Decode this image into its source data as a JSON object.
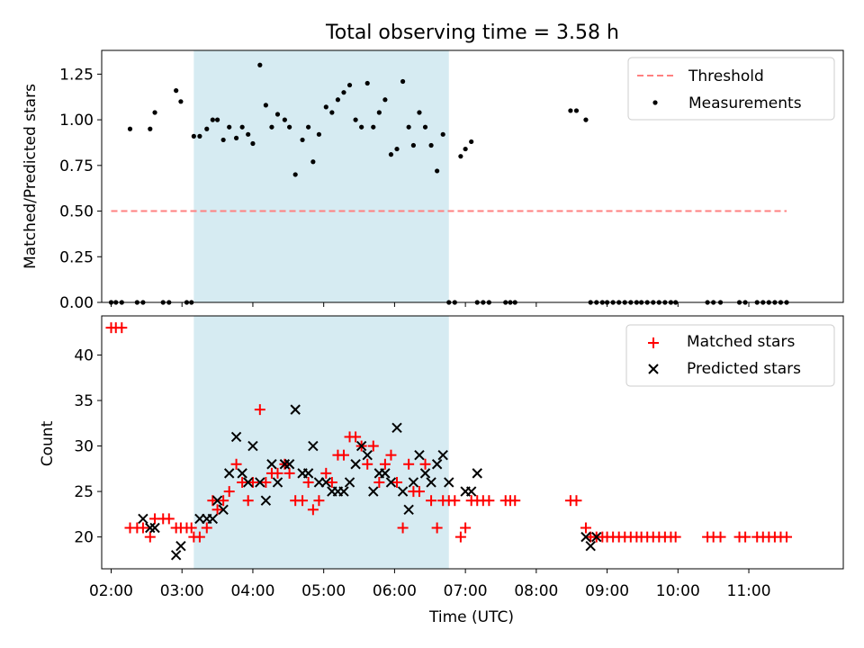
{
  "title": "Total observing time = 3.58 h",
  "chart_data": [
    {
      "type": "scatter",
      "panel": "top",
      "ylabel": "Matched/Predicted stars",
      "xlabel": "",
      "xlim": [
        "01:52",
        "12:20"
      ],
      "ylim": [
        0,
        1.38
      ],
      "yticks": [
        "0.00",
        "0.25",
        "0.50",
        "0.75",
        "1.00",
        "1.25"
      ],
      "legend_position": "top-right",
      "shaded_interval": [
        "03:10",
        "06:46"
      ],
      "series": [
        {
          "name": "Threshold",
          "style": "dashed-line",
          "color": "#ff8080",
          "x": [
            "02:00",
            "11:32"
          ],
          "y": [
            0.5,
            0.5
          ]
        },
        {
          "name": "Measurements",
          "style": "dot",
          "color": "#000000",
          "x": [
            "02:00",
            "02:04",
            "02:09",
            "02:16",
            "02:22",
            "02:27",
            "02:33",
            "02:37",
            "02:44",
            "02:49",
            "02:55",
            "02:59",
            "03:04",
            "03:08",
            "03:10",
            "03:15",
            "03:21",
            "03:26",
            "03:30",
            "03:35",
            "03:40",
            "03:46",
            "03:51",
            "03:56",
            "04:00",
            "04:06",
            "04:11",
            "04:16",
            "04:21",
            "04:27",
            "04:31",
            "04:36",
            "04:42",
            "04:47",
            "04:51",
            "04:56",
            "05:02",
            "05:07",
            "05:12",
            "05:17",
            "05:22",
            "05:27",
            "05:32",
            "05:37",
            "05:42",
            "05:47",
            "05:52",
            "05:57",
            "06:02",
            "06:07",
            "06:12",
            "06:16",
            "06:21",
            "06:26",
            "06:31",
            "06:36",
            "06:41",
            "06:46",
            "06:51",
            "06:56",
            "07:00",
            "07:05",
            "07:10",
            "07:15",
            "07:20",
            "07:34",
            "07:38",
            "07:42",
            "08:29",
            "08:34",
            "08:42",
            "08:46",
            "08:51",
            "08:56",
            "09:00",
            "09:05",
            "09:10",
            "09:15",
            "09:20",
            "09:25",
            "09:29",
            "09:34",
            "09:39",
            "09:44",
            "09:49",
            "09:54",
            "09:58",
            "10:25",
            "10:30",
            "10:36",
            "10:52",
            "10:57",
            "11:07",
            "11:12",
            "11:17",
            "11:22",
            "11:27",
            "11:32"
          ],
          "y": [
            0,
            0,
            0,
            0.95,
            0,
            0,
            0.95,
            1.04,
            0,
            0,
            1.16,
            1.1,
            0,
            0,
            0.91,
            0.91,
            0.95,
            1.0,
            1.0,
            0.89,
            0.96,
            0.9,
            0.96,
            0.92,
            0.87,
            1.3,
            1.08,
            0.96,
            1.03,
            1.0,
            0.96,
            0.7,
            0.89,
            0.96,
            0.77,
            0.92,
            1.07,
            1.04,
            1.11,
            1.15,
            1.19,
            1.0,
            0.96,
            1.2,
            0.96,
            1.04,
            1.11,
            0.81,
            0.84,
            1.21,
            0.96,
            0.86,
            1.04,
            0.96,
            0.86,
            0.72,
            0.92,
            0,
            0,
            0.8,
            0.84,
            0.88,
            0,
            0,
            0,
            0,
            0,
            0,
            1.05,
            1.05,
            1.0,
            0,
            0,
            0,
            0,
            0,
            0,
            0,
            0,
            0,
            0,
            0,
            0,
            0,
            0,
            0,
            0,
            0,
            0,
            0,
            0,
            0,
            0,
            0,
            0,
            0,
            0,
            0
          ]
        }
      ]
    },
    {
      "type": "scatter",
      "panel": "bottom",
      "xlabel": "Time (UTC)",
      "ylabel": "Count",
      "xlim": [
        "01:52",
        "12:20"
      ],
      "ylim": [
        16.5,
        44.3
      ],
      "xticks": [
        "02:00",
        "03:00",
        "04:00",
        "05:00",
        "06:00",
        "07:00",
        "08:00",
        "09:00",
        "10:00",
        "11:00"
      ],
      "yticks": [
        "20",
        "25",
        "30",
        "35",
        "40"
      ],
      "legend_position": "top-right",
      "shaded_interval": [
        "03:10",
        "06:46"
      ],
      "series": [
        {
          "name": "Matched stars",
          "style": "plus",
          "color": "#ff0000",
          "x": [
            "02:00",
            "02:04",
            "02:09",
            "02:16",
            "02:22",
            "02:27",
            "02:33",
            "02:37",
            "02:44",
            "02:49",
            "02:55",
            "02:59",
            "03:04",
            "03:08",
            "03:10",
            "03:15",
            "03:21",
            "03:26",
            "03:30",
            "03:35",
            "03:40",
            "03:46",
            "03:51",
            "03:56",
            "04:00",
            "04:06",
            "04:11",
            "04:16",
            "04:21",
            "04:27",
            "04:31",
            "04:36",
            "04:42",
            "04:47",
            "04:51",
            "04:56",
            "05:02",
            "05:07",
            "05:12",
            "05:17",
            "05:22",
            "05:27",
            "05:32",
            "05:37",
            "05:42",
            "05:47",
            "05:52",
            "05:57",
            "06:02",
            "06:07",
            "06:12",
            "06:16",
            "06:21",
            "06:26",
            "06:31",
            "06:36",
            "06:41",
            "06:46",
            "06:51",
            "06:56",
            "07:00",
            "07:05",
            "07:10",
            "07:15",
            "07:20",
            "07:34",
            "07:38",
            "07:42",
            "08:29",
            "08:34",
            "08:42",
            "08:46",
            "08:51",
            "08:56",
            "09:00",
            "09:05",
            "09:10",
            "09:15",
            "09:20",
            "09:25",
            "09:29",
            "09:34",
            "09:39",
            "09:44",
            "09:49",
            "09:54",
            "09:58",
            "10:25",
            "10:30",
            "10:36",
            "10:52",
            "10:57",
            "11:07",
            "11:12",
            "11:17",
            "11:22",
            "11:27",
            "11:32"
          ],
          "y": [
            43,
            43,
            43,
            21,
            21,
            21,
            20,
            22,
            22,
            22,
            21,
            21,
            21,
            21,
            20,
            20,
            21,
            24,
            23,
            24,
            25,
            28,
            26,
            24,
            26,
            34,
            26,
            27,
            27,
            28,
            27,
            24,
            24,
            26,
            23,
            24,
            27,
            26,
            29,
            29,
            31,
            31,
            30,
            28,
            30,
            26,
            28,
            29,
            26,
            21,
            28,
            25,
            25,
            28,
            24,
            21,
            24,
            24,
            24,
            20,
            21,
            24,
            24,
            24,
            24,
            24,
            24,
            24,
            24,
            24,
            21,
            20,
            20,
            20,
            20,
            20,
            20,
            20,
            20,
            20,
            20,
            20,
            20,
            20,
            20,
            20,
            20,
            20,
            20,
            20,
            20,
            20,
            20,
            20,
            20,
            20,
            20,
            20
          ]
        },
        {
          "name": "Predicted stars",
          "style": "x",
          "color": "#000000",
          "x": [
            "02:27",
            "02:33",
            "02:37",
            "02:55",
            "02:59",
            "03:15",
            "03:21",
            "03:26",
            "03:30",
            "03:35",
            "03:40",
            "03:46",
            "03:51",
            "03:56",
            "04:00",
            "04:06",
            "04:11",
            "04:16",
            "04:21",
            "04:27",
            "04:31",
            "04:36",
            "04:42",
            "04:47",
            "04:51",
            "04:56",
            "05:02",
            "05:07",
            "05:12",
            "05:17",
            "05:22",
            "05:27",
            "05:32",
            "05:37",
            "05:42",
            "05:47",
            "05:52",
            "05:57",
            "06:02",
            "06:07",
            "06:12",
            "06:16",
            "06:21",
            "06:26",
            "06:31",
            "06:36",
            "06:41",
            "06:46",
            "07:00",
            "07:05",
            "07:10",
            "08:42",
            "08:46",
            "08:51"
          ],
          "y": [
            22,
            21,
            21,
            18,
            19,
            22,
            22,
            22,
            24,
            23,
            27,
            31,
            27,
            26,
            30,
            26,
            24,
            28,
            26,
            28,
            28,
            34,
            27,
            27,
            30,
            26,
            26,
            25,
            25,
            25,
            26,
            28,
            30,
            29,
            25,
            27,
            27,
            26,
            32,
            25,
            23,
            26,
            29,
            27,
            26,
            28,
            29,
            26,
            25,
            25,
            27,
            20,
            19,
            20
          ]
        }
      ]
    }
  ]
}
